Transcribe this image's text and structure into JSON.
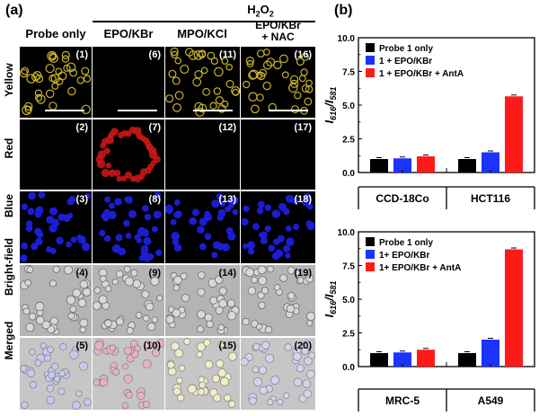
{
  "figure": {
    "panel_a_label": "(a)",
    "panel_b_label": "(b)",
    "treatment_header": {
      "base": "H",
      "sub": "2",
      "tail": "O",
      "sub2": "2"
    },
    "columns": [
      "Probe only",
      "EPO/KBr",
      "MPO/KCl",
      "EPO/KBr\n+ NAC"
    ],
    "rows": [
      "Yellow",
      "Red",
      "Blue",
      "Bright-field",
      "Merged"
    ],
    "tile_numbers": [
      [
        "(1)",
        "(6)",
        "(11)",
        "(16)"
      ],
      [
        "(2)",
        "(7)",
        "(12)",
        "(17)"
      ],
      [
        "(3)",
        "(8)",
        "(13)",
        "(18)"
      ],
      [
        "(4)",
        "(9)",
        "(14)",
        "(19)"
      ],
      [
        "(5)",
        "(10)",
        "(15)",
        "(20)"
      ]
    ]
  },
  "colors": {
    "probe_only": "#000000",
    "epo_kbr": "#1a33ff",
    "epo_kbr_anta": "#ff1a1a",
    "yellow_cells": "#c8b428",
    "red_cells": "#d01818",
    "blue_cells": "#1c1cd0"
  },
  "chart_data": [
    {
      "type": "bar",
      "ylabel": "I616/I581",
      "ylabel_main": "I",
      "ylabel_sub1": "616",
      "ylabel_sep": "/I",
      "ylabel_sub2": "581",
      "ylim": [
        0,
        10
      ],
      "yticks": [
        "0.0",
        "2.5",
        "5.0",
        "7.5",
        "10.0"
      ],
      "groups": [
        "CCD-18Co",
        "HCT116"
      ],
      "series": [
        {
          "name": "Probe 1 only",
          "color": "#000000",
          "values": [
            1.0,
            1.0
          ]
        },
        {
          "name": "1 + EPO/KBr",
          "color": "#1a33ff",
          "values": [
            1.05,
            1.5
          ]
        },
        {
          "name": "1 + EPO/KBr + AntA",
          "color": "#ff1a1a",
          "values": [
            1.2,
            5.65
          ]
        }
      ],
      "legend_position": "top-left"
    },
    {
      "type": "bar",
      "ylabel": "I616/I581",
      "ylabel_main": "I",
      "ylabel_sub1": "616",
      "ylabel_sep": "/I",
      "ylabel_sub2": "581",
      "ylim": [
        0,
        10
      ],
      "yticks": [
        "0.0",
        "2.5",
        "5.0",
        "7.5",
        "10.0"
      ],
      "groups": [
        "MRC-5",
        "A549"
      ],
      "series": [
        {
          "name": "Probe 1 only",
          "color": "#000000",
          "values": [
            1.0,
            1.0
          ]
        },
        {
          "name": "1+ EPO/KBr",
          "color": "#1a33ff",
          "values": [
            1.05,
            2.0
          ]
        },
        {
          "name": "1+ EPO/KBr + AntA",
          "color": "#ff1a1a",
          "values": [
            1.25,
            8.7
          ]
        }
      ],
      "legend_position": "top-left"
    }
  ]
}
